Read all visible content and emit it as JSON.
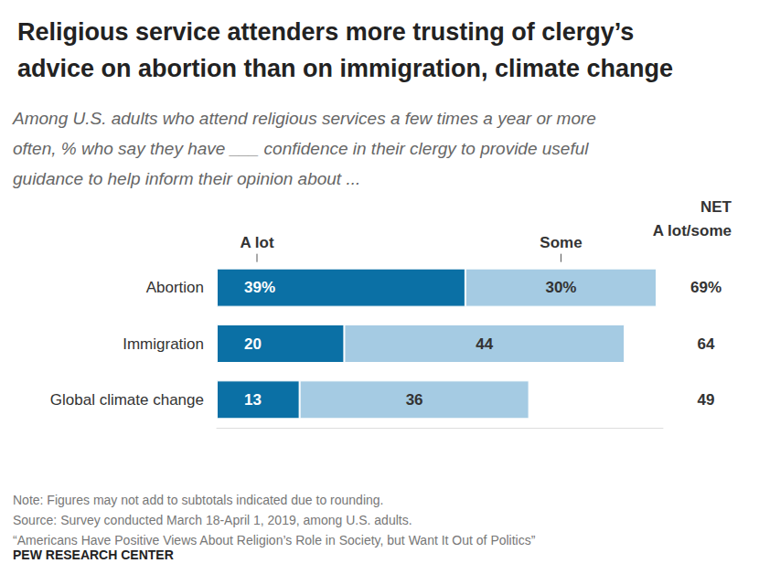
{
  "chart_data": {
    "type": "bar",
    "title": [
      "Religious service attenders more trusting of clergy’s",
      "advice on abortion than on immigration, climate change"
    ],
    "subtitle": [
      "Among U.S. adults who attend religious services a few times a year or more",
      "often, % who say they have ___ confidence in their clergy to provide useful",
      "guidance to help inform their opinion about ..."
    ],
    "categories": [
      "Abortion",
      "Immigration",
      "Global climate change"
    ],
    "series": [
      {
        "name": "A lot",
        "color": "#0b70a5",
        "values": [
          39,
          20,
          13
        ],
        "value_labels": [
          "39%",
          "20",
          "13"
        ]
      },
      {
        "name": "Some",
        "color": "#a5cbe3",
        "values": [
          30,
          44,
          36
        ],
        "value_labels": [
          "30%",
          "44",
          "36"
        ]
      }
    ],
    "net": {
      "title": [
        "NET",
        "A lot/some"
      ],
      "values": [
        69,
        64,
        49
      ],
      "value_labels": [
        "69%",
        "64",
        "49"
      ]
    },
    "xlim": [
      0,
      70
    ],
    "orientation": "horizontal",
    "stacked": true,
    "data_labels": true,
    "tick_labels": false,
    "grid": false,
    "notes": [
      "Note: Figures may not add to subtotals indicated due to rounding.",
      "Source: Survey conducted March 18-April 1, 2019, among U.S. adults.",
      "“Americans Have Positive Views About Religion’s Role in Society, but Want It Out of Politics”"
    ],
    "credit": "PEW RESEARCH CENTER"
  }
}
